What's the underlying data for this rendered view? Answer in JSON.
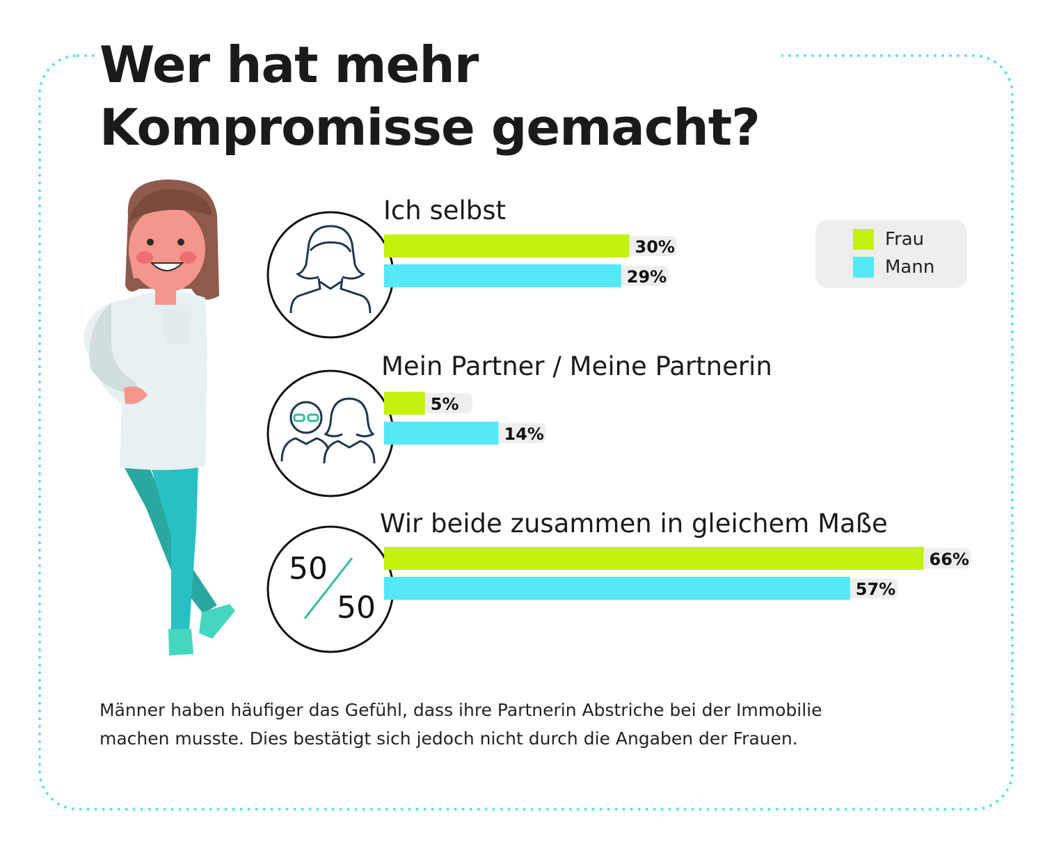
{
  "title": {
    "line1": "Wer hat mehr",
    "line2": "Kompromisse gemacht?"
  },
  "legend": {
    "items": [
      {
        "label": "Frau",
        "color": "#c3f20f"
      },
      {
        "label": "Mann",
        "color": "#55e8f6"
      }
    ]
  },
  "chart_data": {
    "type": "bar",
    "orientation": "horizontal",
    "categories": [
      "Ich selbst",
      "Mein Partner / Meine Partnerin",
      "Wir beide zusammen in gleichem Maße"
    ],
    "series": [
      {
        "name": "Frau",
        "values": [
          30,
          5,
          66
        ],
        "labels": [
          "30%",
          "5%",
          "66%"
        ],
        "color": "#c3f20f"
      },
      {
        "name": "Mann",
        "values": [
          29,
          14,
          57
        ],
        "labels": [
          "29%",
          "14%",
          "57%"
        ],
        "color": "#55e8f6"
      }
    ],
    "xlim": [
      0,
      100
    ],
    "grid": false,
    "legend_position": "top-right"
  },
  "icons": {
    "ratio_top": "50",
    "ratio_bottom": "50",
    "accent": "#2bbf9a",
    "line_color": "#1f3550"
  },
  "footnote": {
    "line1": "Männer haben häufiger das Gefühl, dass ihre Partnerin Abstriche bei der Immobilie",
    "line2": "machen musste. Dies bestätigt sich jedoch nicht durch die Angaben der Frauen."
  }
}
